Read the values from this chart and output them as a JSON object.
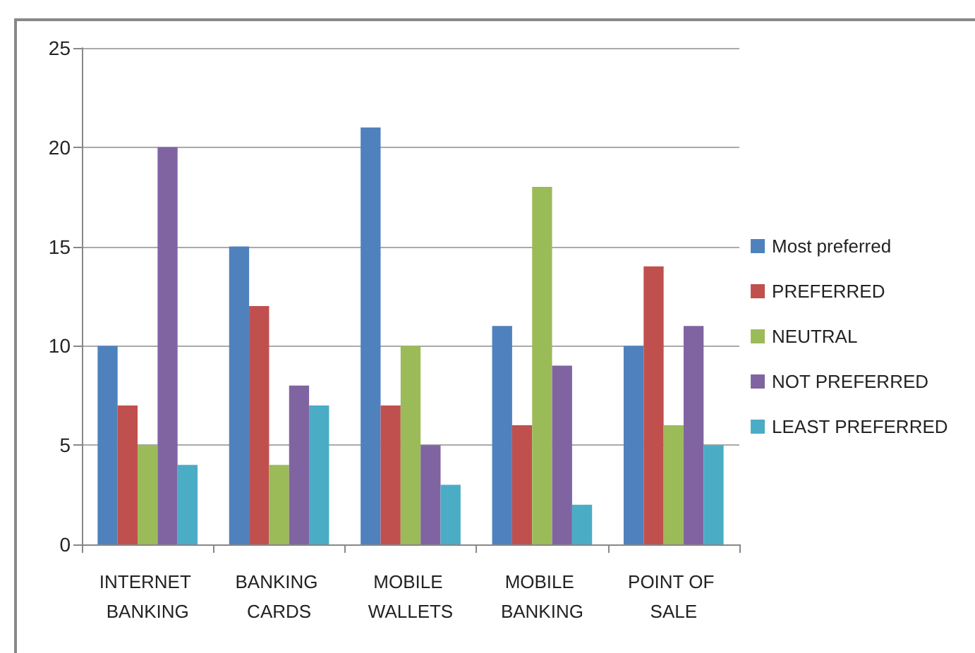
{
  "chart_data": {
    "type": "bar",
    "categories": [
      "INTERNET BANKING",
      "BANKING CARDS",
      "MOBILE WALLETS",
      "MOBILE BANKING",
      "POINT OF SALE"
    ],
    "series": [
      {
        "name": "Most preferred",
        "color": "#4f81bd",
        "values": [
          10,
          15,
          21,
          11,
          10
        ]
      },
      {
        "name": "PREFERRED",
        "color": "#c0504d",
        "values": [
          7,
          12,
          7,
          6,
          14
        ]
      },
      {
        "name": "NEUTRAL",
        "color": "#9bbb59",
        "values": [
          5,
          4,
          10,
          18,
          6
        ]
      },
      {
        "name": "NOT PREFERRED",
        "color": "#8064a2",
        "values": [
          20,
          8,
          5,
          9,
          11
        ]
      },
      {
        "name": "LEAST PREFERRED",
        "color": "#4bacc6",
        "values": [
          4,
          7,
          3,
          2,
          5
        ]
      }
    ],
    "ylim": [
      0,
      25
    ],
    "yticks": [
      0,
      5,
      10,
      15,
      20,
      25
    ],
    "grid": "y",
    "legend": "right"
  }
}
